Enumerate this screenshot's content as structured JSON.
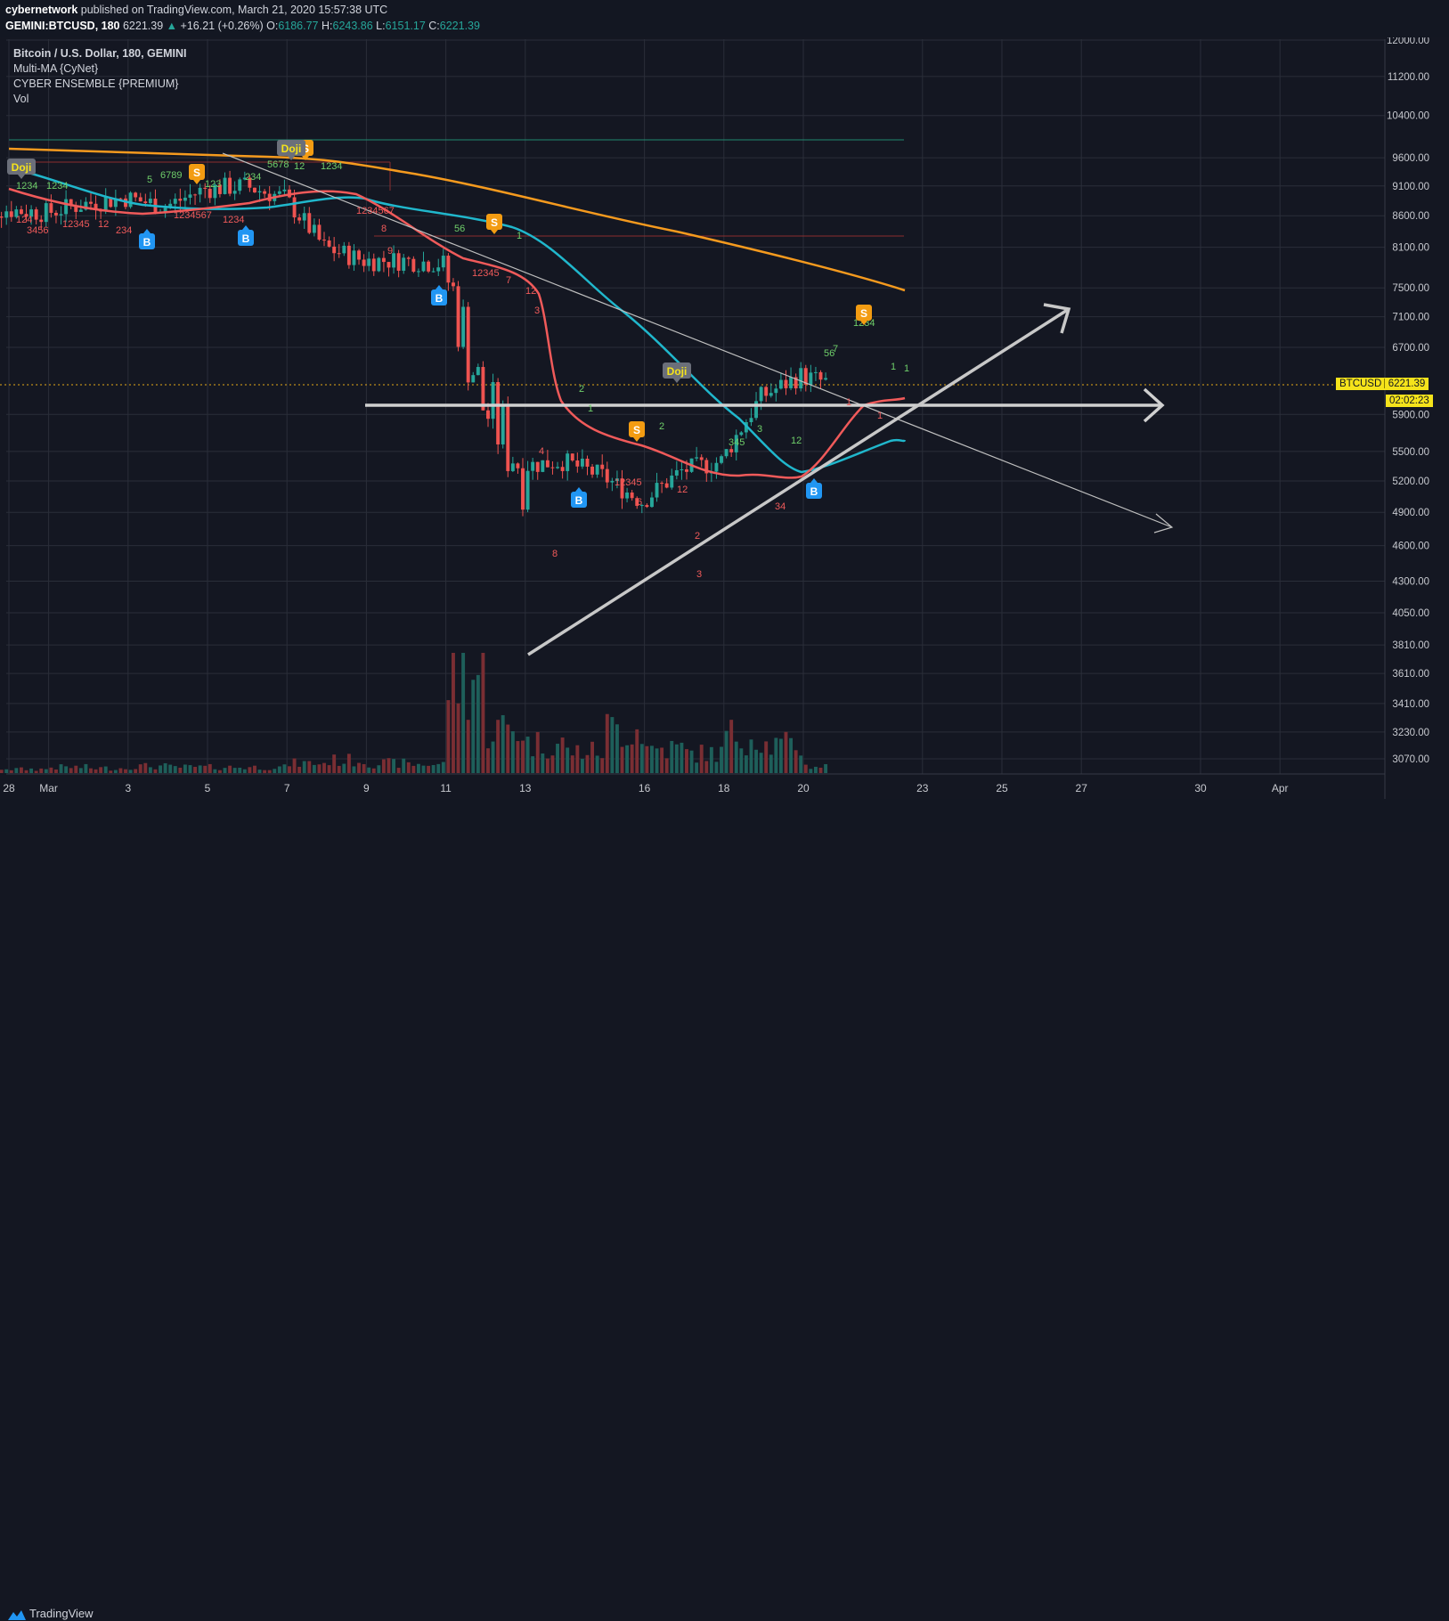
{
  "header": {
    "author": "cybernetwork",
    "published_text": "published on TradingView.com, March 21, 2020 15:57:38 UTC",
    "symbol": "GEMINI:BTCUSD, 180",
    "last": "6221.39",
    "change": "+16.21 (+0.26%)",
    "o_label": "O:",
    "o": "6186.77",
    "h_label": "H:",
    "h": "6243.86",
    "l_label": "L:",
    "l": "6151.17",
    "c_label": "C:",
    "c": "6221.39"
  },
  "legend": {
    "title": "Bitcoin / U.S. Dollar, 180, GEMINI",
    "line1": "Multi-MA {CyNet}",
    "line2": "CYBER ENSEMBLE {PREMIUM}",
    "line3": "Vol"
  },
  "price_axis": {
    "ticks": [
      "12000.00",
      "11200.00",
      "10400.00",
      "9600.00",
      "9100.00",
      "8600.00",
      "8100.00",
      "7500.00",
      "7100.00",
      "6700.00",
      "5900.00",
      "5500.00",
      "5200.00",
      "4900.00",
      "4600.00",
      "4300.00",
      "4050.00",
      "3810.00",
      "3610.00",
      "3410.00",
      "3230.00",
      "3070.00"
    ],
    "last_label": "BTCUSD",
    "last_value": "6221.39",
    "countdown": "02:02:23"
  },
  "time_axis": {
    "ticks": [
      "28",
      "Mar",
      "3",
      "5",
      "7",
      "9",
      "11",
      "13",
      "16",
      "18",
      "20",
      "23",
      "25",
      "27",
      "30",
      "Apr"
    ]
  },
  "signals": {
    "buy": "B",
    "sell": "S",
    "doji": "Doji"
  },
  "footer": {
    "brand": "TradingView"
  },
  "colors": {
    "background": "#141722",
    "up": "#26a69a",
    "down": "#ef5350",
    "ma_fast": "#f05a5a",
    "ma_mid": "#20b7cc",
    "ma_slow": "#f59a1e",
    "buy_badge": "#2196f3",
    "sell_badge": "#f39c12",
    "price_label": "#f5e31b"
  },
  "chart_data": {
    "type": "line",
    "title": "Bitcoin / U.S. Dollar, 180, GEMINI",
    "scale": "log",
    "ylim": [
      3000,
      12300
    ],
    "x": [
      "02-28",
      "03-01",
      "03-02",
      "03-03",
      "03-04",
      "03-05",
      "03-06",
      "03-07",
      "03-08",
      "03-09",
      "03-10",
      "03-11",
      "03-12",
      "03-13",
      "03-14",
      "03-15",
      "03-16",
      "03-17",
      "03-18",
      "03-19",
      "03-20",
      "03-21"
    ],
    "series": [
      {
        "name": "close",
        "values": [
          8700,
          8650,
          8800,
          8900,
          8750,
          9050,
          9100,
          8900,
          8100,
          7900,
          7900,
          7850,
          6000,
          5350,
          5400,
          5250,
          5000,
          5300,
          5400,
          6100,
          6350,
          6221.39
        ]
      }
    ],
    "volume_relative": [
      0.05,
      0.04,
      0.06,
      0.05,
      0.07,
      0.06,
      0.06,
      0.06,
      0.1,
      0.13,
      0.1,
      0.09,
      1.0,
      0.45,
      0.3,
      0.22,
      0.45,
      0.25,
      0.2,
      0.38,
      0.28,
      0.07
    ],
    "grid": true,
    "xlabel": "",
    "ylabel": ""
  }
}
